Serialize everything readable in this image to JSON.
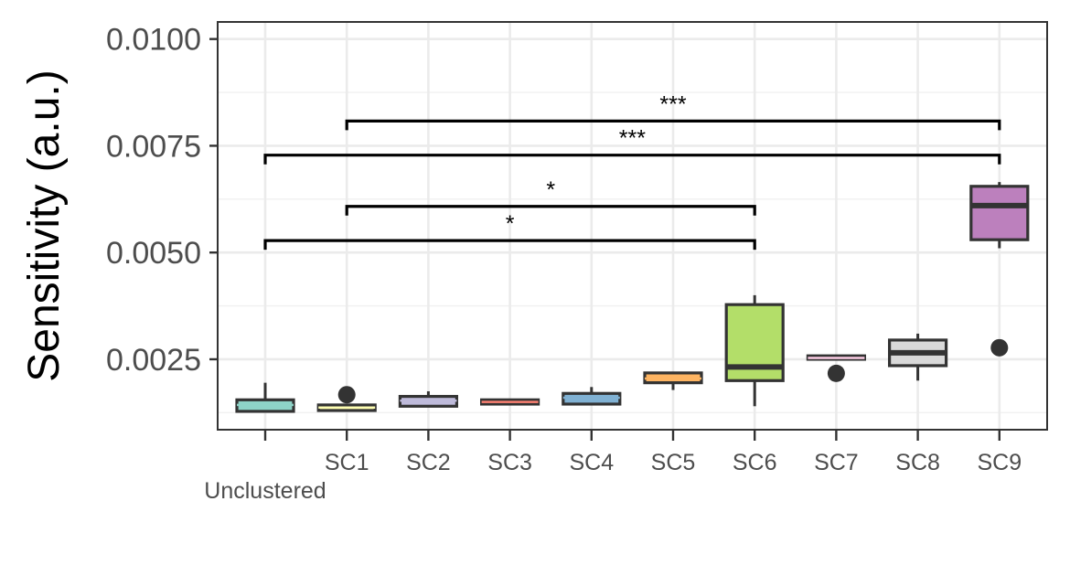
{
  "chart_data": {
    "type": "box",
    "title": "",
    "xlabel": "",
    "ylabel": "Sensitivity (a.u.)",
    "ylim": [
      0.00085,
      0.0104
    ],
    "yticks": [
      0.0025,
      0.005,
      0.0075,
      0.01
    ],
    "ytick_labels": [
      "0.0025",
      "0.0050",
      "0.0075",
      "0.0100"
    ],
    "grid": true,
    "categories": [
      "Unclustered",
      "SC1",
      "SC2",
      "SC3",
      "SC4",
      "SC5",
      "SC6",
      "SC7",
      "SC8",
      "SC9"
    ],
    "boxes": [
      {
        "category": "Unclustered",
        "min": 0.00128,
        "q1": 0.00128,
        "median": 0.00143,
        "q3": 0.00155,
        "max": 0.00195,
        "outliers": [],
        "color": "#8ed3c7"
      },
      {
        "category": "SC1",
        "min": 0.0013,
        "q1": 0.0013,
        "median": 0.00137,
        "q3": 0.00143,
        "max": 0.00145,
        "outliers": [
          0.00167
        ],
        "color": "#ffffb3"
      },
      {
        "category": "SC2",
        "min": 0.0014,
        "q1": 0.0014,
        "median": 0.00153,
        "q3": 0.00163,
        "max": 0.00175,
        "outliers": [],
        "color": "#bebada"
      },
      {
        "category": "SC3",
        "min": 0.00145,
        "q1": 0.00145,
        "median": 0.0015,
        "q3": 0.00155,
        "max": 0.00155,
        "outliers": [],
        "color": "#fb8072"
      },
      {
        "category": "SC4",
        "min": 0.00145,
        "q1": 0.00145,
        "median": 0.0016,
        "q3": 0.0017,
        "max": 0.00185,
        "outliers": [],
        "color": "#80b1d3"
      },
      {
        "category": "SC5",
        "min": 0.00178,
        "q1": 0.00195,
        "median": 0.00205,
        "q3": 0.00218,
        "max": 0.00218,
        "outliers": [],
        "color": "#fdb462"
      },
      {
        "category": "SC6",
        "min": 0.0014,
        "q1": 0.002,
        "median": 0.00232,
        "q3": 0.00378,
        "max": 0.004,
        "outliers": [],
        "color": "#b3de69"
      },
      {
        "category": "SC7",
        "min": 0.0025,
        "q1": 0.0025,
        "median": 0.00253,
        "q3": 0.00258,
        "max": 0.00258,
        "outliers": [
          0.00217
        ],
        "color": "#fccde5"
      },
      {
        "category": "SC8",
        "min": 0.002,
        "q1": 0.00235,
        "median": 0.00265,
        "q3": 0.00295,
        "max": 0.0031,
        "outliers": [],
        "color": "#d9d9d9"
      },
      {
        "category": "SC9",
        "min": 0.0051,
        "q1": 0.0053,
        "median": 0.0061,
        "q3": 0.00655,
        "max": 0.00665,
        "outliers": [
          0.00277
        ],
        "color": "#bc80bd"
      }
    ],
    "significance": [
      {
        "from": "Unclustered",
        "to": "SC6",
        "label": "*",
        "y": 0.00528
      },
      {
        "from": "SC1",
        "to": "SC6",
        "label": "*",
        "y": 0.00608
      },
      {
        "from": "Unclustered",
        "to": "SC9",
        "label": "***",
        "y": 0.00728
      },
      {
        "from": "SC1",
        "to": "SC9",
        "label": "***",
        "y": 0.00808
      }
    ]
  }
}
